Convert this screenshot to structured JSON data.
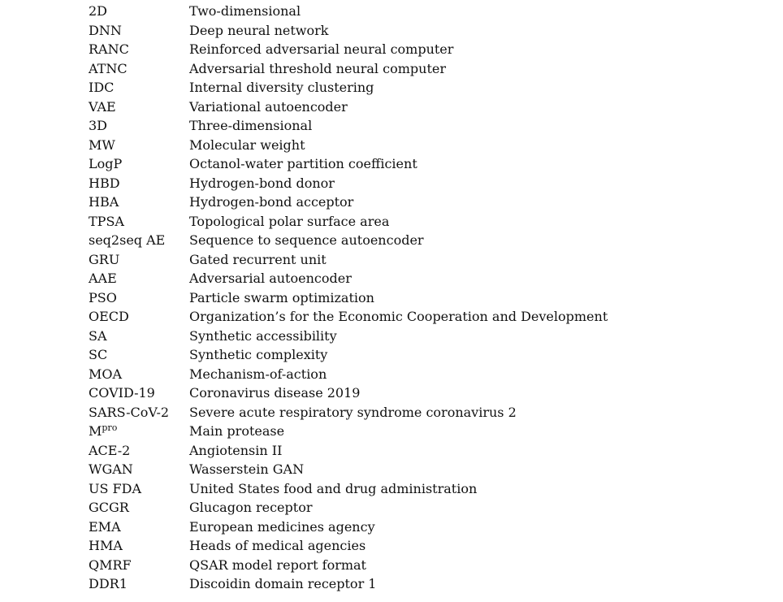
{
  "abbreviations": [
    {
      "term": "2D",
      "definition": "Two-dimensional"
    },
    {
      "term": "DNN",
      "definition": "Deep neural network"
    },
    {
      "term": "RANC",
      "definition": "Reinforced adversarial neural computer"
    },
    {
      "term": "ATNC",
      "definition": "Adversarial threshold neural computer"
    },
    {
      "term": "IDC",
      "definition": "Internal diversity clustering"
    },
    {
      "term": "VAE",
      "definition": "Variational autoencoder"
    },
    {
      "term": "3D",
      "definition": "Three-dimensional"
    },
    {
      "term": "MW",
      "definition": "Molecular weight"
    },
    {
      "term": "LogP",
      "definition": "Octanol-water partition coefficient"
    },
    {
      "term": "HBD",
      "definition": "Hydrogen-bond donor"
    },
    {
      "term": "HBA",
      "definition": "Hydrogen-bond acceptor"
    },
    {
      "term": "TPSA",
      "definition": "Topological polar surface area"
    },
    {
      "term": "seq2seq AE",
      "definition": "Sequence to sequence autoencoder"
    },
    {
      "term": "GRU",
      "definition": "Gated recurrent unit"
    },
    {
      "term": "AAE",
      "definition": "Adversarial autoencoder"
    },
    {
      "term": "PSO",
      "definition": "Particle swarm optimization"
    },
    {
      "term": "OECD",
      "definition": "Organization’s for the Economic Cooperation and Development"
    },
    {
      "term": "SA",
      "definition": "Synthetic accessibility"
    },
    {
      "term": "SC",
      "definition": "Synthetic complexity"
    },
    {
      "term": "MOA",
      "definition": "Mechanism-of-action"
    },
    {
      "term": "COVID-19",
      "definition": "Coronavirus disease 2019"
    },
    {
      "term": "SARS-CoV-2",
      "definition": "Severe acute respiratory syndrome coronavirus 2"
    },
    {
      "term": "M",
      "term_sup": "pro",
      "definition": "Main protease"
    },
    {
      "term": "ACE-2",
      "definition": "Angiotensin II"
    },
    {
      "term": "WGAN",
      "definition": "Wasserstein GAN"
    },
    {
      "term": "US FDA",
      "definition": "United States food and drug administration"
    },
    {
      "term": "GCGR",
      "definition": "Glucagon receptor"
    },
    {
      "term": "EMA",
      "definition": "European medicines agency"
    },
    {
      "term": "HMA",
      "definition": "Heads of medical agencies"
    },
    {
      "term": "QMRF",
      "definition": "QSAR model report format"
    },
    {
      "term": "DDR1",
      "definition": "Discoidin domain receptor 1"
    }
  ]
}
